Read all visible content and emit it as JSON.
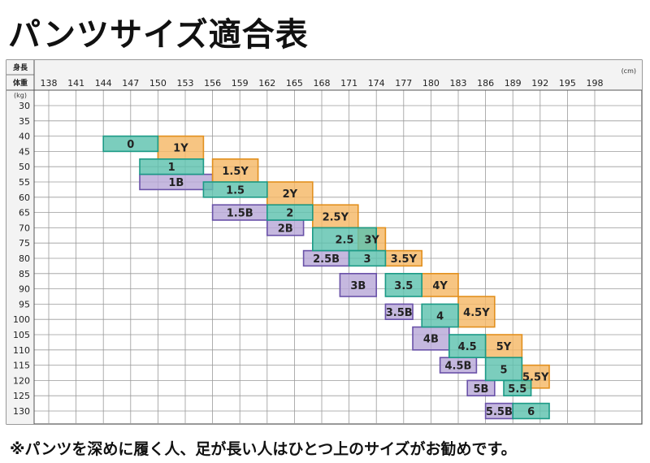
{
  "title": "パンツサイズ適合表",
  "footnote": "※パンツを深めに履く人、足が長い人はひとつ上のサイズがお勧めです。",
  "chart_data": {
    "type": "table",
    "corner_height_label": "身長",
    "corner_weight_label": "体重",
    "height_unit": "(cm)",
    "weight_unit": "(kg)",
    "height_ticks": [
      138,
      141,
      144,
      147,
      150,
      153,
      156,
      159,
      162,
      165,
      168,
      171,
      174,
      177,
      180,
      183,
      186,
      189,
      192,
      195,
      198
    ],
    "weight_ticks": [
      30,
      35,
      40,
      45,
      50,
      55,
      60,
      65,
      70,
      75,
      80,
      85,
      90,
      95,
      100,
      105,
      110,
      115,
      120,
      125,
      130
    ],
    "colors": {
      "Y": "#f5b866",
      "N": "#5ec2ae",
      "B": "#b8a8d8"
    },
    "borders": {
      "Y": "#e2901e",
      "N": "#1c9a86",
      "B": "#6a52a8"
    },
    "sizes": [
      {
        "label": "0",
        "group": "N",
        "height_range": [
          144,
          150
        ],
        "weight_range": [
          40,
          45
        ]
      },
      {
        "label": "1Y",
        "group": "Y",
        "height_range": [
          150,
          155
        ],
        "weight_range": [
          40,
          47.5
        ]
      },
      {
        "label": "1",
        "group": "N",
        "height_range": [
          148,
          155
        ],
        "weight_range": [
          47.5,
          52.5
        ]
      },
      {
        "label": "1B",
        "group": "B",
        "height_range": [
          148,
          156
        ],
        "weight_range": [
          52.5,
          57.5
        ]
      },
      {
        "label": "1.5Y",
        "group": "Y",
        "height_range": [
          156,
          161
        ],
        "weight_range": [
          47.5,
          55
        ]
      },
      {
        "label": "1.5",
        "group": "N",
        "height_range": [
          155,
          162
        ],
        "weight_range": [
          55,
          60
        ]
      },
      {
        "label": "1.5B",
        "group": "B",
        "height_range": [
          156,
          162
        ],
        "weight_range": [
          62.5,
          67.5
        ]
      },
      {
        "label": "2Y",
        "group": "Y",
        "height_range": [
          162,
          167
        ],
        "weight_range": [
          55,
          62.5
        ]
      },
      {
        "label": "2",
        "group": "N",
        "height_range": [
          162,
          167
        ],
        "weight_range": [
          62.5,
          67.5
        ]
      },
      {
        "label": "2B",
        "group": "B",
        "height_range": [
          162,
          166
        ],
        "weight_range": [
          67.5,
          72.5
        ]
      },
      {
        "label": "2.5Y",
        "group": "Y",
        "height_range": [
          167,
          172
        ],
        "weight_range": [
          62.5,
          70
        ]
      },
      {
        "label": "2.5",
        "group": "N",
        "height_range": [
          167,
          174
        ],
        "weight_range": [
          70,
          77.5
        ]
      },
      {
        "label": "2.5B",
        "group": "B",
        "height_range": [
          166,
          171
        ],
        "weight_range": [
          77.5,
          82.5
        ]
      },
      {
        "label": "3Y",
        "group": "Y",
        "height_range": [
          172,
          175
        ],
        "weight_range": [
          70,
          77.5
        ]
      },
      {
        "label": "3",
        "group": "N",
        "height_range": [
          171,
          175
        ],
        "weight_range": [
          77.5,
          82.5
        ]
      },
      {
        "label": "3B",
        "group": "B",
        "height_range": [
          170,
          174
        ],
        "weight_range": [
          85,
          92.5
        ]
      },
      {
        "label": "3.5Y",
        "group": "Y",
        "height_range": [
          175,
          179
        ],
        "weight_range": [
          77.5,
          82.5
        ]
      },
      {
        "label": "3.5",
        "group": "N",
        "height_range": [
          175,
          179
        ],
        "weight_range": [
          85,
          92.5
        ]
      },
      {
        "label": "3.5B",
        "group": "B",
        "height_range": [
          175,
          178
        ],
        "weight_range": [
          95,
          100
        ]
      },
      {
        "label": "4Y",
        "group": "Y",
        "height_range": [
          179,
          183
        ],
        "weight_range": [
          85,
          92.5
        ]
      },
      {
        "label": "4",
        "group": "N",
        "height_range": [
          179,
          183
        ],
        "weight_range": [
          95,
          102.5
        ]
      },
      {
        "label": "4B",
        "group": "B",
        "height_range": [
          178,
          182
        ],
        "weight_range": [
          102.5,
          110
        ]
      },
      {
        "label": "4.5Y",
        "group": "Y",
        "height_range": [
          183,
          187
        ],
        "weight_range": [
          92.5,
          102.5
        ]
      },
      {
        "label": "4.5",
        "group": "N",
        "height_range": [
          182,
          186
        ],
        "weight_range": [
          105,
          112.5
        ]
      },
      {
        "label": "4.5B",
        "group": "B",
        "height_range": [
          181,
          185
        ],
        "weight_range": [
          112.5,
          117.5
        ]
      },
      {
        "label": "5Y",
        "group": "Y",
        "height_range": [
          186,
          190
        ],
        "weight_range": [
          105,
          112.5
        ]
      },
      {
        "label": "5",
        "group": "N",
        "height_range": [
          186,
          190
        ],
        "weight_range": [
          112.5,
          120
        ]
      },
      {
        "label": "5B",
        "group": "B",
        "height_range": [
          184,
          187
        ],
        "weight_range": [
          120,
          125
        ]
      },
      {
        "label": "5.5Y",
        "group": "Y",
        "height_range": [
          190,
          193
        ],
        "weight_range": [
          115,
          122.5
        ]
      },
      {
        "label": "5.5",
        "group": "N",
        "height_range": [
          188,
          191
        ],
        "weight_range": [
          120,
          125
        ]
      },
      {
        "label": "5.5B",
        "group": "B",
        "height_range": [
          186,
          189
        ],
        "weight_range": [
          127.5,
          132.5
        ]
      },
      {
        "label": "6",
        "group": "N",
        "height_range": [
          189,
          193
        ],
        "weight_range": [
          127.5,
          132.5
        ]
      }
    ]
  }
}
